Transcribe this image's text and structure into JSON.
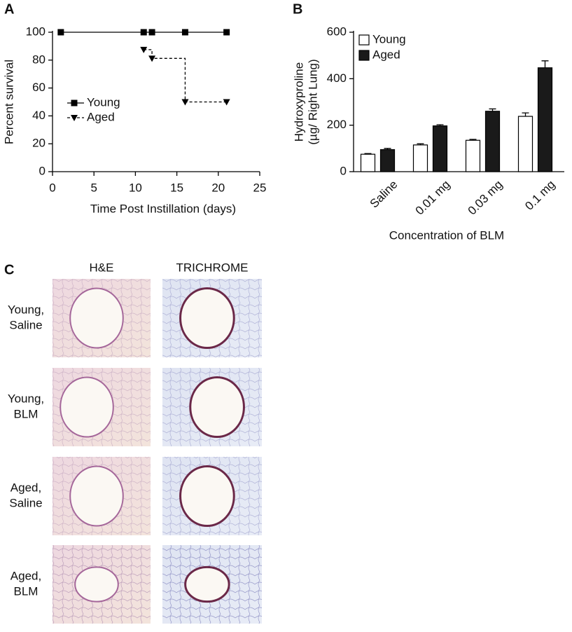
{
  "chart_data": [
    {
      "type": "line",
      "panel": "A",
      "step": true,
      "xlabel": "Time Post Instillation (days)",
      "ylabel": "Percent survival",
      "xlim": [
        0,
        25
      ],
      "xticks": [
        0,
        5,
        10,
        15,
        20,
        25
      ],
      "ylim": [
        0,
        100
      ],
      "yticks": [
        0,
        20,
        40,
        60,
        80,
        100
      ],
      "series": [
        {
          "name": "Young",
          "color": "#000000",
          "marker": "square",
          "dashed": false,
          "x": [
            1,
            11,
            12,
            16,
            21
          ],
          "values": [
            100,
            100,
            100,
            100,
            100
          ]
        },
        {
          "name": "Aged",
          "color": "#000000",
          "marker": "triangle-down",
          "dashed": true,
          "x": [
            11,
            12,
            16,
            21
          ],
          "values": [
            87.5,
            81.25,
            50,
            50
          ]
        }
      ]
    },
    {
      "type": "bar",
      "panel": "B",
      "xlabel": "Concentration of BLM",
      "ylabel": [
        "Hydroxyproline",
        "(µg/ Right Lung)"
      ],
      "categories": [
        "Saline",
        "0.01 mg",
        "0.03 mg",
        "0.1 mg"
      ],
      "ylim": [
        0,
        600
      ],
      "yticks": [
        0,
        200,
        400,
        600
      ],
      "series": [
        {
          "name": "Young",
          "color": "#ffffff",
          "values": [
            75,
            115,
            135,
            238
          ],
          "errors": [
            3,
            5,
            4,
            15
          ]
        },
        {
          "name": "Aged",
          "color": "#1a1a1a",
          "values": [
            95,
            197,
            260,
            447
          ],
          "errors": [
            5,
            5,
            10,
            30
          ]
        }
      ]
    }
  ],
  "panel_c": {
    "label": "C",
    "columns": [
      "H&E",
      "TRICHROME"
    ],
    "rows": [
      [
        "Young,",
        "Saline"
      ],
      [
        "Young,",
        "BLM"
      ],
      [
        "Aged,",
        "Saline"
      ],
      [
        "Aged,",
        "BLM"
      ]
    ]
  }
}
